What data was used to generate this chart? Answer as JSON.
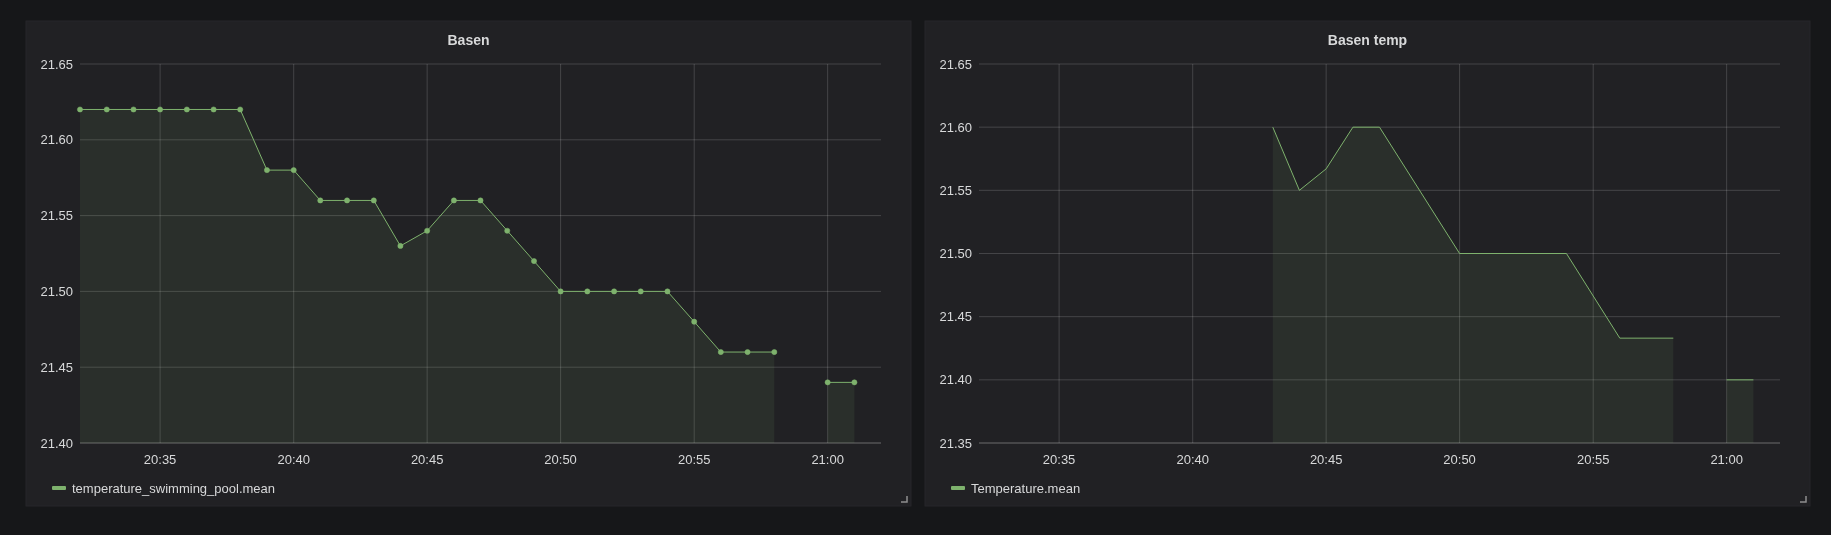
{
  "chart_data": [
    {
      "type": "area",
      "title": "Basen",
      "xlim": [
        20.5333,
        21.0333
      ],
      "xticks": [
        {
          "value": 20.5833,
          "label": "20:35"
        },
        {
          "value": 20.6667,
          "label": "20:40"
        },
        {
          "value": 20.75,
          "label": "20:45"
        },
        {
          "value": 20.8333,
          "label": "20:50"
        },
        {
          "value": 20.9167,
          "label": "20:55"
        },
        {
          "value": 21,
          "label": "21:00"
        }
      ],
      "ylim": [
        21.4,
        21.65
      ],
      "yticks": [
        {
          "value": 21.4,
          "label": "21.40"
        },
        21.45,
        {
          "value": 21.5,
          "label": "21.50"
        },
        21.55,
        {
          "value": 21.6,
          "label": "21.60"
        },
        21.65
      ],
      "grid": true,
      "legend": "bottom",
      "marker": "circle",
      "series": [
        {
          "name": "temperature_swimming_pool.mean",
          "color": "#7eb26d",
          "x": [
            20.5333,
            20.55,
            20.5667,
            20.5833,
            20.6,
            20.6167,
            20.6333,
            20.65,
            20.6667,
            20.6833,
            20.7,
            20.7167,
            20.7333,
            20.75,
            20.7667,
            20.7833,
            20.8,
            20.8167,
            20.8333,
            20.85,
            20.8667,
            20.8833,
            20.9,
            20.9167,
            20.9333,
            20.95,
            20.9667,
            20.9833,
            21,
            21.0167
          ],
          "values": [
            21.62,
            21.62,
            21.62,
            21.62,
            21.62,
            21.62,
            21.62,
            21.58,
            21.58,
            21.56,
            21.56,
            21.56,
            21.53,
            21.54,
            21.56,
            21.56,
            21.54,
            21.52,
            21.5,
            21.5,
            21.5,
            21.5,
            21.5,
            21.48,
            21.46,
            21.46,
            21.46,
            null,
            21.44,
            21.44
          ]
        }
      ]
    },
    {
      "type": "area",
      "title": "Basen temp",
      "xlim": [
        20.5333,
        21.0333
      ],
      "xticks": [
        {
          "value": 20.5833,
          "label": "20:35"
        },
        {
          "value": 20.6667,
          "label": "20:40"
        },
        {
          "value": 20.75,
          "label": "20:45"
        },
        {
          "value": 20.8333,
          "label": "20:50"
        },
        {
          "value": 20.9167,
          "label": "20:55"
        },
        {
          "value": 21,
          "label": "21:00"
        }
      ],
      "ylim": [
        21.35,
        21.65
      ],
      "yticks": [
        21.35,
        {
          "value": 21.4,
          "label": "21.40"
        },
        21.45,
        {
          "value": 21.5,
          "label": "21.50"
        },
        21.55,
        {
          "value": 21.6,
          "label": "21.60"
        },
        21.65
      ],
      "grid": true,
      "legend": "bottom",
      "series": [
        {
          "name": "Temperature.mean",
          "color": "#7eb26d",
          "x": [
            20.7167,
            20.7333,
            20.75,
            20.7667,
            20.7833,
            20.8333,
            20.9,
            20.9333,
            20.9667,
            20.9833,
            21,
            21.0167
          ],
          "values": [
            21.6,
            21.55,
            21.567,
            21.6,
            21.6,
            21.5,
            21.5,
            21.433,
            21.433,
            null,
            21.4,
            21.4
          ]
        }
      ]
    }
  ]
}
